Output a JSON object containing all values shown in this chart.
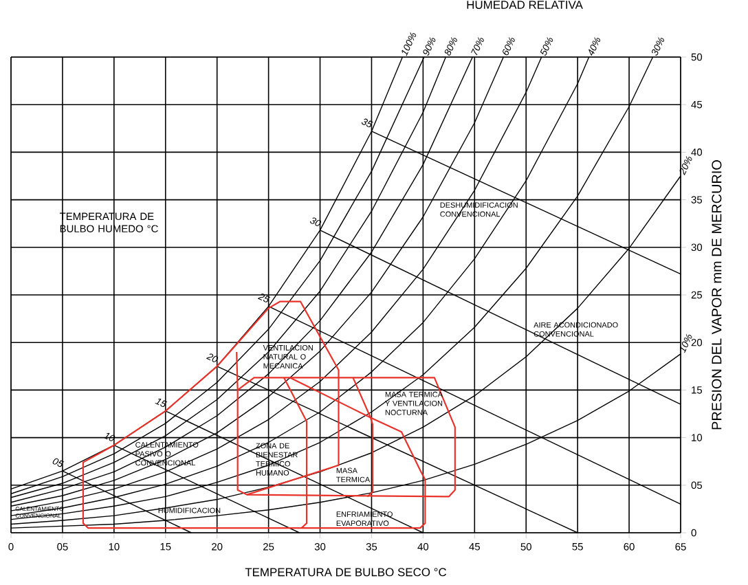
{
  "chart_data": {
    "type": "line",
    "title": "HUMEDAD RELATIVA",
    "xlabel": "TEMPERATURA DE BULBO SECO °C",
    "ylabel": "PRESION DEL VAPOR mm DE MERCURIO",
    "xlim": [
      0,
      65
    ],
    "ylim": [
      0,
      50
    ],
    "xticks": [
      0,
      {
        "value": 5,
        "label": "05"
      },
      10,
      15,
      20,
      25,
      30,
      35,
      40,
      45,
      50,
      55,
      60,
      65
    ],
    "yticks": [
      0,
      {
        "value": 5,
        "label": "05"
      },
      10,
      15,
      20,
      25,
      30,
      35,
      40,
      45,
      50
    ],
    "grid": true,
    "series": [
      {
        "name": "100%",
        "color": "#000000",
        "x": [
          38.0,
          35,
          30,
          25,
          20,
          15,
          10,
          5,
          0
        ],
        "values": [
          50,
          42.2,
          31.8,
          23.8,
          17.5,
          12.8,
          9.2,
          6.5,
          4.6
        ]
      },
      {
        "name": "90%",
        "color": "#000000",
        "x": [
          40.1,
          35,
          30,
          25,
          20,
          15,
          10,
          5,
          0
        ],
        "values": [
          50,
          38.0,
          28.6,
          21.4,
          15.8,
          11.5,
          8.3,
          5.9,
          4.1
        ]
      },
      {
        "name": "80%",
        "color": "#000000",
        "x": [
          42.2,
          40,
          35,
          30,
          25,
          20,
          15,
          10,
          5,
          0
        ],
        "values": [
          50,
          44.2,
          33.8,
          25.4,
          19.0,
          14.0,
          10.2,
          7.4,
          5.2,
          3.7
        ]
      },
      {
        "name": "70%",
        "color": "#000000",
        "x": [
          44.8,
          40,
          35,
          30,
          25,
          20,
          15,
          10,
          5,
          0
        ],
        "values": [
          50,
          38.7,
          29.5,
          22.3,
          16.7,
          12.3,
          9.0,
          6.4,
          4.6,
          3.2
        ]
      },
      {
        "name": "60%",
        "color": "#000000",
        "x": [
          47.8,
          45,
          40,
          35,
          30,
          25,
          20,
          15,
          10,
          5,
          0
        ],
        "values": [
          50,
          43.1,
          33.2,
          25.3,
          19.1,
          14.3,
          10.5,
          7.7,
          5.5,
          3.9,
          2.8
        ]
      },
      {
        "name": "50%",
        "color": "#000000",
        "x": [
          51.5,
          50,
          45,
          40,
          35,
          30,
          25,
          20,
          15,
          10,
          5,
          0
        ],
        "values": [
          50,
          46.3,
          36.0,
          27.7,
          21.1,
          15.9,
          11.9,
          8.8,
          6.4,
          4.6,
          3.3,
          2.3
        ]
      },
      {
        "name": "40%",
        "color": "#000000",
        "x": [
          56.1,
          55,
          50,
          45,
          40,
          35,
          30,
          25,
          20,
          15,
          10,
          5,
          0
        ],
        "values": [
          50,
          47.2,
          37.0,
          28.8,
          22.1,
          16.9,
          12.7,
          9.5,
          7.0,
          5.1,
          3.7,
          2.6,
          1.8
        ]
      },
      {
        "name": "30%",
        "color": "#000000",
        "x": [
          62.3,
          60,
          55,
          50,
          45,
          40,
          35,
          30,
          25,
          20,
          15,
          10,
          5,
          0
        ],
        "values": [
          50,
          44.8,
          35.4,
          27.8,
          21.6,
          16.6,
          12.7,
          9.5,
          7.1,
          5.3,
          3.8,
          2.8,
          2.0,
          1.4
        ]
      },
      {
        "name": "20%",
        "color": "#000000",
        "x": [
          65,
          60,
          55,
          50,
          45,
          40,
          35,
          30,
          25,
          20,
          15,
          10,
          5,
          0
        ],
        "values": [
          37.5,
          29.9,
          23.6,
          18.5,
          14.4,
          11.1,
          8.4,
          6.4,
          4.8,
          3.5,
          2.6,
          1.8,
          1.3,
          0.9
        ]
      },
      {
        "name": "10%",
        "color": "#000000",
        "x": [
          65,
          60,
          55,
          50,
          45,
          40,
          35,
          30,
          25,
          20,
          15,
          10,
          5,
          0
        ],
        "values": [
          18.8,
          14.9,
          11.8,
          9.3,
          7.2,
          5.5,
          4.2,
          3.2,
          2.4,
          1.8,
          1.3,
          0.9,
          0.7,
          0.5
        ]
      },
      {
        "name": "05",
        "color": "#000000",
        "x": [
          5,
          17.5
        ],
        "values": [
          6.5,
          0
        ]
      },
      {
        "name": "10",
        "color": "#000000",
        "x": [
          10,
          28
        ],
        "values": [
          9.2,
          0
        ]
      },
      {
        "name": "15",
        "color": "#000000",
        "x": [
          15,
          40
        ],
        "values": [
          12.8,
          0
        ]
      },
      {
        "name": "20",
        "color": "#000000",
        "x": [
          20,
          55
        ],
        "values": [
          17.5,
          0
        ]
      },
      {
        "name": "25",
        "color": "#000000",
        "x": [
          25,
          65
        ],
        "values": [
          23.8,
          3.0
        ]
      },
      {
        "name": "30",
        "color": "#000000",
        "x": [
          30,
          65
        ],
        "values": [
          31.8,
          13.5
        ]
      },
      {
        "name": "35",
        "color": "#000000",
        "x": [
          35,
          65
        ],
        "values": [
          42.2,
          27.2
        ]
      },
      {
        "color": "#e8322a",
        "x": [
          40.2,
          40.2,
          39.7,
          7.5,
          7.0,
          7.0,
          10,
          15,
          20,
          25,
          26.1,
          28.1,
          31.8,
          31.8,
          22.9
        ],
        "values": [
          5.6,
          1.0,
          0.5,
          0.5,
          1.0,
          7.4,
          9.2,
          12.8,
          17.5,
          23.6,
          24.3,
          24.3,
          17.1,
          7.1,
          4.0
        ]
      },
      {
        "color": "#e8322a",
        "x": [
          21.9,
          22,
          22,
          22.9,
          42.5,
          43.1,
          43.1,
          41.1,
          23.6,
          22
        ],
        "values": [
          19.0,
          15.0,
          4.5,
          4.0,
          3.8,
          4.5,
          11.1,
          16.3,
          16.3,
          15.0
        ]
      },
      {
        "color": "#e8322a",
        "x": [
          26.5,
          28.7,
          28.7,
          28.2
        ],
        "values": [
          16.3,
          11.7,
          1.0,
          0.5
        ]
      },
      {
        "color": "#e8322a",
        "x": [
          33.2,
          34.9,
          35.1,
          35.1,
          34.6
        ],
        "values": [
          16.3,
          12.1,
          11.4,
          4.3,
          3.8
        ]
      },
      {
        "color": "#e8322a",
        "x": [
          27.1,
          34.9,
          37.9,
          39.8,
          40.2
        ],
        "values": [
          16.3,
          12.1,
          10.6,
          6.4,
          5.6
        ]
      }
    ],
    "annotations": [
      "TEMPERATURA DE BULBO HUMEDO °C",
      "VENTILACION NATURAL O MECANICA",
      "ZONA DE BIENESTAR TERMICO HUMANO",
      "CALENTAMIENTO PASIVO O CONVENCIONAL",
      "HUMIDIFICACION",
      "MASA TERMICA",
      "MASA TERMICA Y VENTILACION NOCTURNA",
      "ENFRIAMIENTO EVAPORATIVO",
      "DESHUMIDIFICACION CONVENCIONAL",
      "AIRE ACONDICIONADO CONVENCIONAL",
      "CALENTAMIENTO CONVENCIONAL"
    ]
  }
}
